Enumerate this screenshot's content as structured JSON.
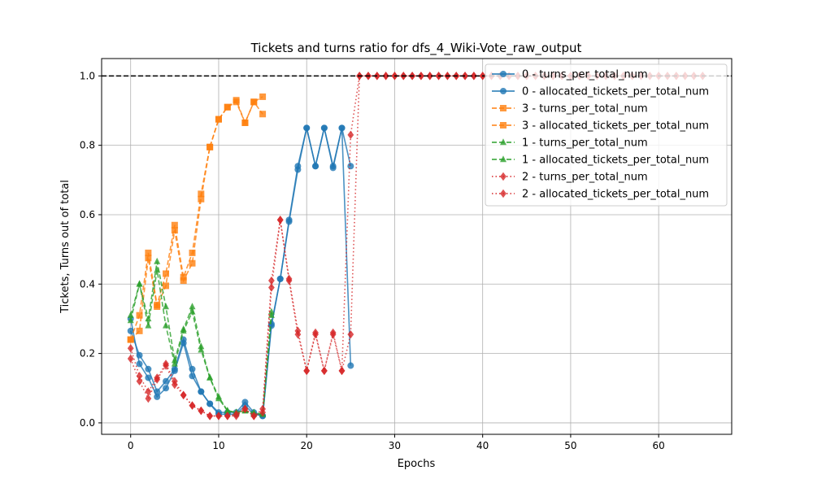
{
  "chart_data": {
    "type": "line",
    "title": "Tickets and turns ratio for dfs_4_Wiki-Vote_raw_output",
    "xlabel": "Epochs",
    "ylabel": "Tickets, Turns out of total",
    "xlim": [
      -3.3,
      68.3
    ],
    "ylim": [
      -0.033,
      1.05
    ],
    "xticks": [
      0,
      10,
      20,
      30,
      40,
      50,
      60
    ],
    "yticks": [
      0.0,
      0.2,
      0.4,
      0.6,
      0.8,
      1.0
    ],
    "grid": true,
    "legend_position": "top-right",
    "reference_line": {
      "y": 1.0,
      "style": "dashed",
      "color": "#000000"
    },
    "series": [
      {
        "name": "0 - turns_per_total_num",
        "color": "#1f77b4",
        "marker": "circle",
        "linestyle": "solid",
        "x": [
          0,
          1,
          2,
          3,
          4,
          5,
          6,
          7,
          8,
          9,
          10,
          11,
          12,
          13,
          14,
          15,
          16,
          17,
          18,
          19,
          20,
          21,
          22,
          23,
          24,
          25
        ],
        "y": [
          0.265,
          0.195,
          0.155,
          0.09,
          0.12,
          0.155,
          0.24,
          0.155,
          0.09,
          0.055,
          0.03,
          0.03,
          0.03,
          0.06,
          0.03,
          0.02,
          0.28,
          0.415,
          0.585,
          0.74,
          0.85,
          0.74,
          0.85,
          0.74,
          0.85,
          0.74
        ]
      },
      {
        "name": "0 - allocated_tickets_per_total_num",
        "color": "#1f77b4",
        "marker": "circle",
        "linestyle": "solid",
        "x": [
          0,
          1,
          2,
          3,
          4,
          5,
          6,
          7,
          8,
          9,
          10,
          11,
          12,
          13,
          14,
          15,
          16,
          17,
          18,
          19,
          20,
          21,
          22,
          23,
          24,
          25
        ],
        "y": [
          0.3,
          0.17,
          0.13,
          0.075,
          0.1,
          0.15,
          0.23,
          0.135,
          0.09,
          0.055,
          0.025,
          0.025,
          0.025,
          0.05,
          0.025,
          0.02,
          0.285,
          0.415,
          0.58,
          0.73,
          0.85,
          0.74,
          0.85,
          0.735,
          0.85,
          0.165
        ]
      },
      {
        "name": "3 - turns_per_total_num",
        "color": "#ff7f0e",
        "marker": "square",
        "linestyle": "dashed",
        "x": [
          0,
          1,
          2,
          3,
          4,
          5,
          6,
          7,
          8,
          9,
          10,
          11,
          12,
          13,
          14,
          15
        ],
        "y": [
          0.24,
          0.31,
          0.49,
          0.34,
          0.43,
          0.57,
          0.42,
          0.49,
          0.66,
          0.795,
          0.875,
          0.91,
          0.93,
          0.865,
          0.925,
          0.94
        ]
      },
      {
        "name": "3 - allocated_tickets_per_total_num",
        "color": "#ff7f0e",
        "marker": "square",
        "linestyle": "dashed",
        "x": [
          0,
          1,
          2,
          3,
          4,
          5,
          6,
          7,
          8,
          9,
          10,
          11,
          12,
          13,
          14,
          15
        ],
        "y": [
          0.24,
          0.265,
          0.475,
          0.335,
          0.395,
          0.555,
          0.41,
          0.46,
          0.645,
          0.795,
          0.875,
          0.91,
          0.925,
          0.865,
          0.925,
          0.89
        ]
      },
      {
        "name": "1 - turns_per_total_num",
        "color": "#2ca02c",
        "marker": "triangle",
        "linestyle": "dashed",
        "x": [
          0,
          1,
          2,
          3,
          4,
          5,
          6,
          7,
          8,
          9,
          10,
          11,
          12,
          13,
          14,
          15,
          16
        ],
        "y": [
          0.31,
          0.4,
          0.3,
          0.465,
          0.335,
          0.18,
          0.27,
          0.335,
          0.22,
          0.13,
          0.075,
          0.035,
          0.03,
          0.035,
          0.03,
          0.025,
          0.32
        ]
      },
      {
        "name": "1 - allocated_tickets_per_total_num",
        "color": "#2ca02c",
        "marker": "triangle",
        "linestyle": "dashed",
        "x": [
          0,
          1,
          2,
          3,
          4,
          5,
          6,
          7,
          8,
          9,
          10,
          11,
          12,
          13,
          14,
          15,
          16
        ],
        "y": [
          0.295,
          0.4,
          0.28,
          0.44,
          0.28,
          0.17,
          0.265,
          0.32,
          0.21,
          0.13,
          0.07,
          0.035,
          0.03,
          0.035,
          0.025,
          0.025,
          0.31
        ]
      },
      {
        "name": "2 - turns_per_total_num",
        "color": "#d62728",
        "marker": "diamond",
        "linestyle": "dotted",
        "x": [
          0,
          1,
          2,
          3,
          4,
          5,
          6,
          7,
          8,
          9,
          10,
          11,
          12,
          13,
          14,
          15,
          16,
          17,
          18,
          19,
          20,
          21,
          22,
          23,
          24,
          25,
          26,
          27,
          28,
          29,
          30,
          31,
          32,
          33,
          34,
          35,
          36,
          37,
          38,
          39,
          40,
          41,
          42,
          43,
          44,
          45,
          46,
          47,
          48,
          49,
          50,
          51,
          52,
          53,
          54,
          55,
          56,
          57,
          58,
          59,
          60,
          61,
          62,
          63,
          64,
          65
        ],
        "y": [
          0.215,
          0.135,
          0.09,
          0.13,
          0.17,
          0.12,
          0.08,
          0.05,
          0.035,
          0.02,
          0.02,
          0.02,
          0.02,
          0.04,
          0.02,
          0.04,
          0.41,
          0.585,
          0.415,
          0.265,
          0.15,
          0.26,
          0.15,
          0.26,
          0.15,
          0.83,
          1,
          1,
          1,
          1,
          1,
          1,
          1,
          1,
          1,
          1,
          1,
          1,
          1,
          1,
          1,
          1,
          1,
          1,
          1,
          1,
          1,
          1,
          1,
          1,
          1,
          1,
          1,
          1,
          1,
          1,
          1,
          1,
          1,
          1,
          1,
          1,
          1,
          1,
          1,
          1
        ]
      },
      {
        "name": "2 - allocated_tickets_per_total_num",
        "color": "#d62728",
        "marker": "diamond",
        "linestyle": "dotted",
        "x": [
          0,
          1,
          2,
          3,
          4,
          5,
          6,
          7,
          8,
          9,
          10,
          11,
          12,
          13,
          14,
          15,
          16,
          17,
          18,
          19,
          20,
          21,
          22,
          23,
          24,
          25,
          26,
          27,
          28,
          29,
          30,
          31,
          32,
          33,
          34,
          35,
          36,
          37,
          38,
          39,
          40,
          41,
          42,
          43,
          44,
          45,
          46,
          47,
          48,
          49,
          50,
          51,
          52,
          53,
          54,
          55,
          56,
          57,
          58,
          59,
          60,
          61,
          62,
          63,
          64,
          65
        ],
        "y": [
          0.185,
          0.12,
          0.07,
          0.125,
          0.165,
          0.11,
          0.08,
          0.05,
          0.035,
          0.02,
          0.02,
          0.02,
          0.025,
          0.04,
          0.02,
          0.03,
          0.39,
          0.585,
          0.41,
          0.255,
          0.15,
          0.255,
          0.15,
          0.255,
          0.15,
          0.255,
          1,
          1,
          1,
          1,
          1,
          1,
          1,
          1,
          1,
          1,
          1,
          1,
          1,
          1,
          1,
          1,
          1,
          1,
          1,
          1,
          1,
          1,
          1,
          1,
          1,
          1,
          1,
          1,
          1,
          1,
          1,
          1,
          1,
          1,
          1,
          1,
          1,
          1,
          1,
          1
        ]
      }
    ]
  }
}
